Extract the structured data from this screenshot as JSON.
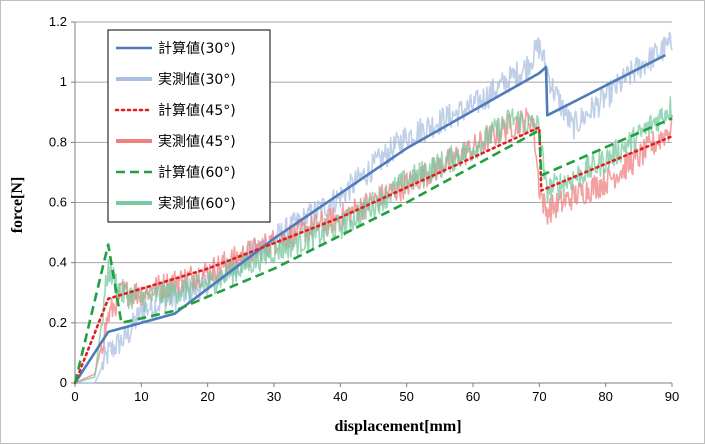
{
  "chart_data": {
    "type": "line",
    "title": "",
    "xlabel": "displacement[mm]",
    "ylabel": "force[N]",
    "xlim": [
      0,
      90
    ],
    "ylim": [
      0,
      1.2
    ],
    "x_ticks": [
      "0",
      "10",
      "20",
      "30",
      "40",
      "50",
      "60",
      "70",
      "80",
      "90"
    ],
    "y_ticks": [
      "0",
      "0.2",
      "0.4",
      "0.6",
      "0.8",
      "1",
      "1.2"
    ],
    "grid": "horizontal",
    "legend_position": "top-left",
    "series": [
      {
        "name": "計算値(30°)",
        "color": "#4f7bb8",
        "dash": "solid",
        "kind": "calc",
        "points": [
          [
            0,
            0.0
          ],
          [
            5,
            0.17
          ],
          [
            15,
            0.23
          ],
          [
            30,
            0.48
          ],
          [
            50,
            0.78
          ],
          [
            70,
            1.03
          ],
          [
            71,
            1.05
          ],
          [
            71.2,
            0.89
          ],
          [
            89,
            1.09
          ]
        ]
      },
      {
        "name": "実測値(30°)",
        "color": "#a9bfe0",
        "dash": "solid",
        "kind": "measured",
        "points": [
          [
            0,
            0.0
          ],
          [
            3,
            0.0
          ],
          [
            5,
            0.1
          ],
          [
            8,
            0.16
          ],
          [
            10,
            0.24
          ],
          [
            20,
            0.33
          ],
          [
            30,
            0.48
          ],
          [
            40,
            0.62
          ],
          [
            50,
            0.82
          ],
          [
            60,
            0.92
          ],
          [
            68,
            1.05
          ],
          [
            70,
            1.12
          ],
          [
            72,
            0.98
          ],
          [
            75,
            0.85
          ],
          [
            80,
            0.95
          ],
          [
            85,
            1.05
          ],
          [
            90,
            1.13
          ]
        ]
      },
      {
        "name": "計算値(45°)",
        "color": "#e02020",
        "dash": "dotted",
        "kind": "calc",
        "points": [
          [
            0,
            0.0
          ],
          [
            5,
            0.28
          ],
          [
            20,
            0.38
          ],
          [
            40,
            0.55
          ],
          [
            60,
            0.75
          ],
          [
            70,
            0.85
          ],
          [
            70.3,
            0.64
          ],
          [
            90,
            0.82
          ]
        ]
      },
      {
        "name": "実測値(45°)",
        "color": "#f08080",
        "dash": "solid",
        "kind": "measured",
        "points": [
          [
            0,
            0.0
          ],
          [
            3,
            0.03
          ],
          [
            5,
            0.22
          ],
          [
            7,
            0.3
          ],
          [
            10,
            0.3
          ],
          [
            20,
            0.37
          ],
          [
            30,
            0.47
          ],
          [
            40,
            0.55
          ],
          [
            50,
            0.66
          ],
          [
            60,
            0.78
          ],
          [
            65,
            0.85
          ],
          [
            69,
            0.88
          ],
          [
            70,
            0.65
          ],
          [
            71,
            0.57
          ],
          [
            75,
            0.62
          ],
          [
            80,
            0.67
          ],
          [
            85,
            0.75
          ],
          [
            90,
            0.85
          ]
        ]
      },
      {
        "name": "計算値(60°)",
        "color": "#20a040",
        "dash": "dashed",
        "kind": "calc",
        "points": [
          [
            0,
            0.0
          ],
          [
            5,
            0.46
          ],
          [
            7,
            0.2
          ],
          [
            15,
            0.24
          ],
          [
            30,
            0.38
          ],
          [
            50,
            0.6
          ],
          [
            70,
            0.84
          ],
          [
            70.3,
            0.69
          ],
          [
            90,
            0.88
          ]
        ]
      },
      {
        "name": "実測値(60°)",
        "color": "#78c8a0",
        "dash": "solid",
        "kind": "measured",
        "points": [
          [
            0,
            0.0
          ],
          [
            3,
            0.02
          ],
          [
            5,
            0.38
          ],
          [
            7,
            0.3
          ],
          [
            10,
            0.28
          ],
          [
            20,
            0.33
          ],
          [
            30,
            0.44
          ],
          [
            40,
            0.52
          ],
          [
            50,
            0.67
          ],
          [
            60,
            0.78
          ],
          [
            66,
            0.88
          ],
          [
            70,
            0.85
          ],
          [
            71,
            0.64
          ],
          [
            75,
            0.68
          ],
          [
            80,
            0.74
          ],
          [
            85,
            0.82
          ],
          [
            90,
            0.92
          ]
        ]
      }
    ]
  }
}
